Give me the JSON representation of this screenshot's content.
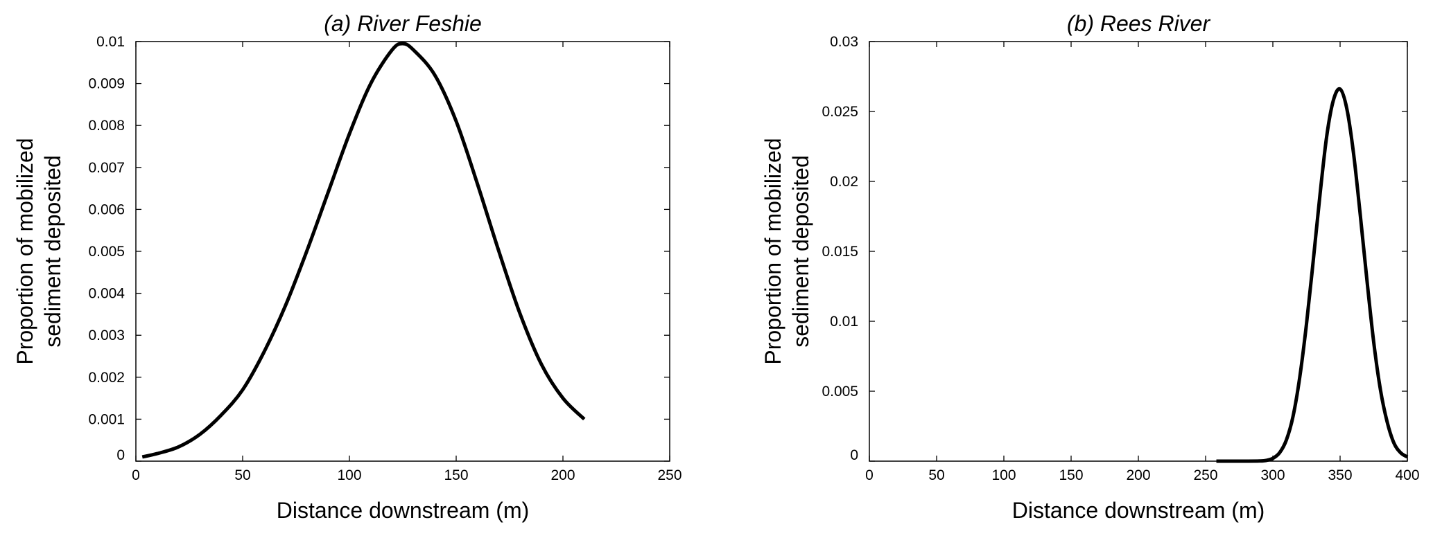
{
  "chart_data": [
    {
      "type": "line",
      "title": "(a) River Feshie",
      "xlabel": "Distance downstream (m)",
      "ylabel_lines": [
        "Proportion of mobilized",
        "sediment deposited"
      ],
      "xlim": [
        0,
        250
      ],
      "ylim": [
        0,
        0.01
      ],
      "xticks": [
        0,
        50,
        100,
        150,
        200,
        250
      ],
      "xtick_labels": [
        "0",
        "50",
        "100",
        "150",
        "200",
        "250"
      ],
      "yticks": [
        0,
        0.001,
        0.002,
        0.003,
        0.004,
        0.005,
        0.006,
        0.007,
        0.008,
        0.009,
        0.01
      ],
      "ytick_labels": [
        "0",
        "0.001",
        "0.002",
        "0.003",
        "0.004",
        "0.005",
        "0.006",
        "0.007",
        "0.008",
        "0.009",
        "0.01"
      ],
      "grid": false,
      "series": [
        {
          "color": "#000000",
          "x": [
            3,
            10,
            20,
            30,
            40,
            50,
            60,
            70,
            80,
            90,
            100,
            110,
            120,
            125,
            130,
            140,
            150,
            160,
            170,
            180,
            190,
            200,
            210
          ],
          "y": [
            0.0001,
            0.00018,
            0.00034,
            0.00064,
            0.0011,
            0.0017,
            0.0026,
            0.0037,
            0.005,
            0.0064,
            0.0078,
            0.009,
            0.0098,
            0.00995,
            0.0098,
            0.0092,
            0.0081,
            0.0066,
            0.005,
            0.0035,
            0.0023,
            0.0015,
            0.001
          ]
        }
      ]
    },
    {
      "type": "line",
      "title": "(b) Rees River",
      "xlabel": "Distance downstream (m)",
      "ylabel_lines": [
        "Proportion of mobilized",
        "sediment deposited"
      ],
      "xlim": [
        0,
        400
      ],
      "ylim": [
        0,
        0.03
      ],
      "xticks": [
        0,
        50,
        100,
        150,
        200,
        250,
        300,
        350,
        400
      ],
      "xtick_labels": [
        "0",
        "50",
        "100",
        "150",
        "200",
        "250",
        "300",
        "350",
        "400"
      ],
      "yticks": [
        0,
        0.005,
        0.01,
        0.015,
        0.02,
        0.025,
        0.03
      ],
      "ytick_labels": [
        "0",
        "0.005",
        "0.01",
        "0.015",
        "0.02",
        "0.025",
        "0.03"
      ],
      "grid": false,
      "series": [
        {
          "color": "#000000",
          "x": [
            258,
            270,
            280,
            290,
            295,
            300,
            305,
            310,
            315,
            320,
            325,
            330,
            335,
            340,
            345,
            350,
            355,
            360,
            365,
            370,
            375,
            380,
            385,
            390,
            395,
            400
          ],
          "y": [
            0,
            0,
            0,
            1e-05,
            5e-05,
            0.0002,
            0.0006,
            0.0015,
            0.0032,
            0.006,
            0.0098,
            0.0143,
            0.019,
            0.0232,
            0.0258,
            0.0266,
            0.0252,
            0.022,
            0.0176,
            0.0129,
            0.0085,
            0.0051,
            0.0028,
            0.0013,
            0.0006,
            0.0003
          ]
        }
      ]
    }
  ]
}
